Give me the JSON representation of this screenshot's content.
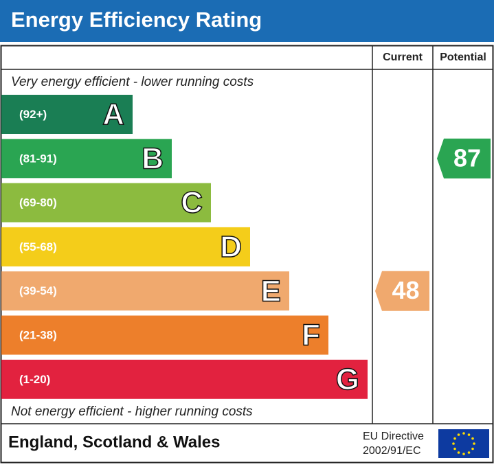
{
  "title": "Energy Efficiency Rating",
  "columns": [
    "Current",
    "Potential"
  ],
  "top_note": "Very energy efficient - lower running costs",
  "bottom_note": "Not energy efficient - higher running costs",
  "bands": [
    {
      "range": "(92+)",
      "letter": "A",
      "color": "#1a7e54"
    },
    {
      "range": "(81-91)",
      "letter": "B",
      "color": "#2aa552"
    },
    {
      "range": "(69-80)",
      "letter": "C",
      "color": "#8cbb3f"
    },
    {
      "range": "(55-68)",
      "letter": "D",
      "color": "#f4cd1a"
    },
    {
      "range": "(39-54)",
      "letter": "E",
      "color": "#f0a96e"
    },
    {
      "range": "(21-38)",
      "letter": "F",
      "color": "#ed7f2b"
    },
    {
      "range": "(1-20)",
      "letter": "G",
      "color": "#e2223f"
    }
  ],
  "ratings": {
    "current": 48,
    "potential": 87
  },
  "footer": {
    "region": "England, Scotland & Wales",
    "directive": [
      "EU Directive",
      "2002/91/EC"
    ]
  }
}
